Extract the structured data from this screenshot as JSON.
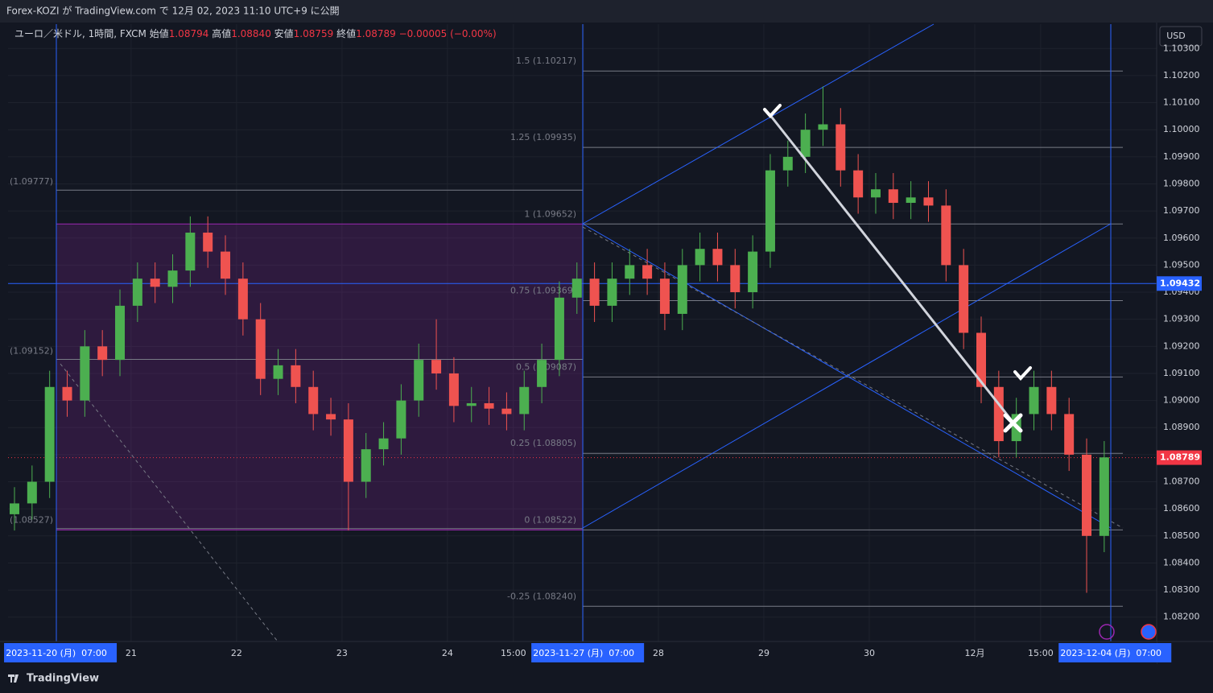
{
  "header": {
    "title": "Forex-KOZI が TradingView.com で 12月 02, 2023 11:10 UTC+9 に公開"
  },
  "footer": {
    "brand": "TradingView"
  },
  "chart_data": {
    "type": "candlestick",
    "legend": {
      "symbol": "ユーロ／米ドル, 1時間, FXCM",
      "open_label": "始値",
      "open": "1.08794",
      "high_label": "高値",
      "high": "1.08840",
      "low_label": "安値",
      "low": "1.08759",
      "close_label": "終値",
      "close": "1.08789",
      "change": "−0.00005 (−0.00%)"
    },
    "currency": "USD",
    "up_color": "#4caf50",
    "down_color": "#ef5350",
    "xlim": [
      0,
      261.4
    ],
    "ylim": [
      1.0811,
      1.1039
    ],
    "xticks": [
      {
        "value": 11,
        "label": "2023-11-20 (月)  07:00"
      },
      {
        "value": 28,
        "label": "21"
      },
      {
        "value": 52,
        "label": "22"
      },
      {
        "value": 76,
        "label": "23"
      },
      {
        "value": 100,
        "label": "24"
      },
      {
        "value": 115,
        "label": "15:00"
      },
      {
        "value": 131,
        "label": "2023-11-27 (月)  07:00"
      },
      {
        "value": 148,
        "label": "28"
      },
      {
        "value": 172,
        "label": "29"
      },
      {
        "value": 196,
        "label": "30"
      },
      {
        "value": 220,
        "label": "12月"
      },
      {
        "value": 235,
        "label": "15:00"
      },
      {
        "value": 251,
        "label": "2023-12-04 (月)  07:00"
      }
    ],
    "yticks": [
      {
        "value": 1.103,
        "label": "1.10300"
      },
      {
        "value": 1.102,
        "label": "1.10200"
      },
      {
        "value": 1.101,
        "label": "1.10100"
      },
      {
        "value": 1.1,
        "label": "1.10000"
      },
      {
        "value": 1.099,
        "label": "1.09900"
      },
      {
        "value": 1.098,
        "label": "1.09800"
      },
      {
        "value": 1.097,
        "label": "1.09700"
      },
      {
        "value": 1.096,
        "label": "1.09600"
      },
      {
        "value": 1.095,
        "label": "1.09500"
      },
      {
        "value": 1.094,
        "label": "1.09400"
      },
      {
        "value": 1.093,
        "label": "1.09300"
      },
      {
        "value": 1.092,
        "label": "1.09200"
      },
      {
        "value": 1.091,
        "label": "1.09100"
      },
      {
        "value": 1.09,
        "label": "1.09000"
      },
      {
        "value": 1.089,
        "label": "1.08900"
      },
      {
        "value": 1.088,
        "label": "1.08800"
      },
      {
        "value": 1.087,
        "label": "1.08700"
      },
      {
        "value": 1.086,
        "label": "1.08600"
      },
      {
        "value": 1.085,
        "label": "1.08500"
      },
      {
        "value": 1.084,
        "label": "1.08400"
      },
      {
        "value": 1.083,
        "label": "1.08300"
      },
      {
        "value": 1.082,
        "label": "1.08200"
      }
    ],
    "grid": true,
    "fib_levels": [
      {
        "value": 1.10217,
        "label": "1.5 (1.10217)"
      },
      {
        "value": 1.09935,
        "label": "1.25 (1.09935)"
      },
      {
        "value": 1.09652,
        "label": "1 (1.09652)"
      },
      {
        "value": 1.09369,
        "label": "0.75 (1.09369)"
      },
      {
        "value": 1.09087,
        "label": "0.5 (1.09087)"
      },
      {
        "value": 1.08805,
        "label": "0.25 (1.08805)"
      },
      {
        "value": 1.08522,
        "label": "0 (1.08522)"
      },
      {
        "value": -0.25,
        "label": "-0.25 (1.08240)",
        "price": 1.0824
      }
    ],
    "left_levels": [
      {
        "value": 1.09777,
        "label": "(1.09777)"
      },
      {
        "value": 1.09152,
        "label": "(1.09152)"
      },
      {
        "value": 1.08527,
        "label": "(1.08527)"
      }
    ],
    "zone": [
      1.09652,
      1.08522
    ],
    "hline": {
      "value": 1.09432,
      "label": "1.09432"
    },
    "last_price": {
      "value": 1.08789,
      "label": "1.08789"
    },
    "x": [
      0,
      4,
      8,
      12,
      16,
      20,
      24,
      28,
      32,
      36,
      40,
      44,
      48,
      52,
      56,
      60,
      64,
      68,
      72,
      76,
      80,
      84,
      88,
      92,
      96,
      100,
      104,
      108,
      112,
      116,
      120,
      124,
      128,
      132,
      136,
      140,
      144,
      148,
      152,
      156,
      160,
      164,
      168,
      172,
      176,
      180,
      184,
      188,
      192,
      196,
      200,
      204,
      208,
      212,
      216,
      220,
      224,
      228,
      232,
      236,
      240,
      244,
      248
    ],
    "open": [
      1.0858,
      1.0862,
      1.087,
      1.0905,
      1.09,
      1.092,
      1.0915,
      1.0935,
      1.0945,
      1.0942,
      1.0948,
      1.0962,
      1.0955,
      1.0945,
      1.093,
      1.0908,
      1.0913,
      1.0905,
      1.0895,
      1.0893,
      1.087,
      1.0882,
      1.0886,
      1.09,
      1.0915,
      1.091,
      1.0898,
      1.0899,
      1.0897,
      1.0895,
      1.0905,
      1.0915,
      1.0938,
      1.0945,
      1.0935,
      1.0945,
      1.095,
      1.0945,
      1.0932,
      1.095,
      1.0956,
      1.095,
      1.094,
      1.0955,
      1.0985,
      1.099,
      1.1,
      1.1002,
      1.0985,
      1.0975,
      1.0978,
      1.0973,
      1.0975,
      1.0972,
      1.095,
      1.0925,
      1.0905,
      1.0885,
      1.0895,
      1.0905,
      1.0895,
      1.088,
      1.085
    ],
    "high": [
      1.0868,
      1.0876,
      1.0911,
      1.0911,
      1.0926,
      1.0926,
      1.0941,
      1.0951,
      1.0951,
      1.0954,
      1.0968,
      1.0968,
      1.0961,
      1.0951,
      1.0936,
      1.0919,
      1.0919,
      1.0911,
      1.0901,
      1.0899,
      1.0888,
      1.0892,
      1.0906,
      1.0921,
      1.093,
      1.0916,
      1.0905,
      1.0905,
      1.0903,
      1.0911,
      1.0921,
      1.0944,
      1.0951,
      1.0951,
      1.0951,
      1.0956,
      1.0956,
      1.0951,
      1.0956,
      1.0962,
      1.0962,
      1.0956,
      1.0961,
      1.0991,
      1.0996,
      1.1006,
      1.1016,
      1.1008,
      1.0991,
      1.0984,
      1.0984,
      1.0981,
      1.0981,
      1.0978,
      1.0956,
      1.0931,
      1.0911,
      1.0901,
      1.0911,
      1.0911,
      1.0901,
      1.0886,
      1.0885
    ],
    "low": [
      1.0852,
      1.0856,
      1.0864,
      1.0894,
      1.0894,
      1.0909,
      1.0909,
      1.0929,
      1.0936,
      1.0936,
      1.0942,
      1.0949,
      1.0939,
      1.0924,
      1.0902,
      1.0902,
      1.0899,
      1.0889,
      1.0887,
      1.0852,
      1.0864,
      1.0876,
      1.088,
      1.0894,
      1.0904,
      1.0892,
      1.0892,
      1.0891,
      1.0889,
      1.0889,
      1.0899,
      1.0909,
      1.0932,
      1.0929,
      1.0929,
      1.0939,
      1.0939,
      1.0926,
      1.0926,
      1.0944,
      1.0944,
      1.0934,
      1.0934,
      1.0949,
      1.0979,
      1.0984,
      1.0994,
      1.0979,
      1.0969,
      1.0969,
      1.0967,
      1.0967,
      1.0966,
      1.0944,
      1.0919,
      1.0899,
      1.0879,
      1.0879,
      1.0889,
      1.0889,
      1.0874,
      1.0829,
      1.0844
    ],
    "close": [
      1.0862,
      1.087,
      1.0905,
      1.09,
      1.092,
      1.0915,
      1.0935,
      1.0945,
      1.0942,
      1.0948,
      1.0962,
      1.0955,
      1.0945,
      1.093,
      1.0908,
      1.0913,
      1.0905,
      1.0895,
      1.0893,
      1.087,
      1.0882,
      1.0886,
      1.09,
      1.0915,
      1.091,
      1.0898,
      1.0899,
      1.0897,
      1.0895,
      1.0905,
      1.0915,
      1.0938,
      1.0945,
      1.0935,
      1.0945,
      1.095,
      1.0945,
      1.0932,
      1.095,
      1.0956,
      1.095,
      1.094,
      1.0955,
      1.0985,
      1.099,
      1.1,
      1.1002,
      1.0985,
      1.0975,
      1.0978,
      1.0973,
      1.0975,
      1.0972,
      1.095,
      1.0925,
      1.0905,
      1.0885,
      1.0895,
      1.0905,
      1.0895,
      1.088,
      1.085,
      1.0879
    ]
  }
}
